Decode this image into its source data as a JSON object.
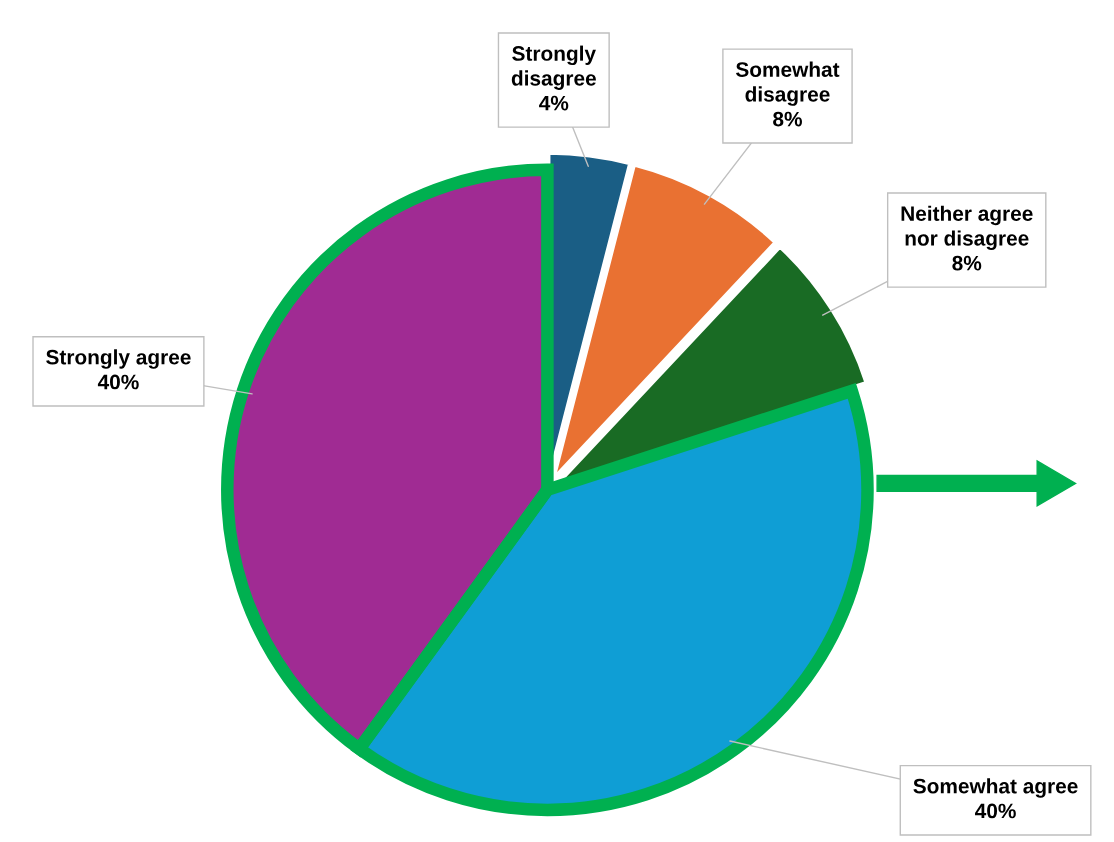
{
  "chart_data": {
    "type": "pie",
    "categories": [
      "Strongly\ndisagree",
      "Somewhat\ndisagree",
      "Neither agree\nnor disagree",
      "Somewhat agree",
      "Strongly agree"
    ],
    "values": [
      4,
      8,
      8,
      40,
      40
    ],
    "value_labels": [
      "4%",
      "8%",
      "8%",
      "40%",
      "40%"
    ],
    "colors": [
      "#1a5e85",
      "#e97132",
      "#196b24",
      "#0f9ed5",
      "#a02b93"
    ],
    "legend": false
  }
}
